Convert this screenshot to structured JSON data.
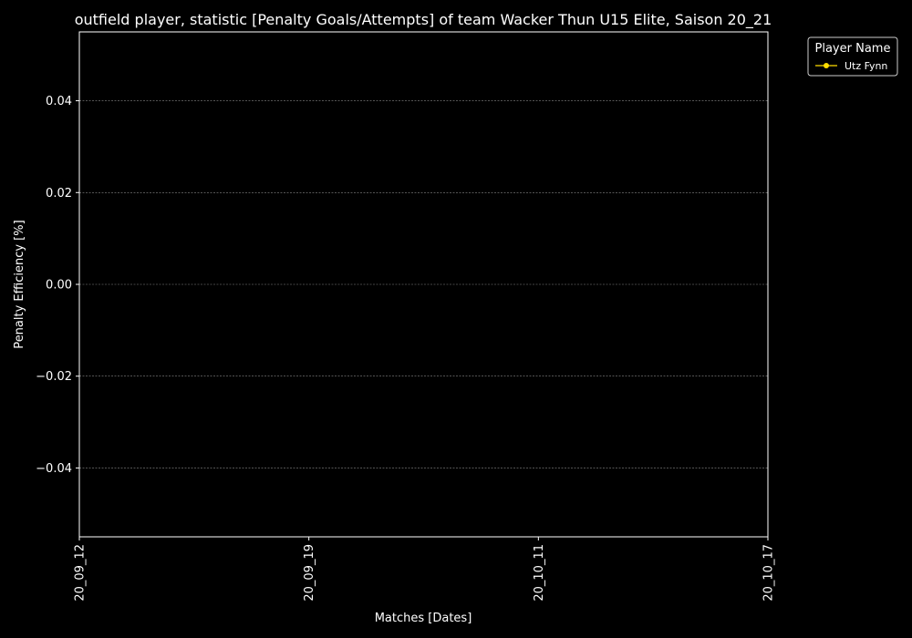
{
  "chart_data": {
    "type": "line",
    "title": "outfield player, statistic [Penalty Goals/Attempts] of team Wacker Thun U15 Elite, Saison 20_21",
    "xlabel": "Matches [Dates]",
    "ylabel": "Penalty Efficiency [%]",
    "categories": [
      "20_09_12",
      "20_09_19",
      "20_10_11",
      "20_10_17"
    ],
    "ylim": [
      -0.055,
      0.055
    ],
    "yticks": [
      -0.04,
      -0.02,
      0.0,
      0.02,
      0.04
    ],
    "ytick_labels": [
      "−0.04",
      "−0.02",
      "0.00",
      "0.02",
      "0.04"
    ],
    "grid": true,
    "legend": {
      "title": "Player Name",
      "placement": "outside-top-right"
    },
    "series": [
      {
        "name": "Utz Fynn",
        "color": "#ffdd00",
        "marker": "circle",
        "values": [
          null,
          null,
          null,
          null
        ]
      }
    ]
  },
  "colors": {
    "background": "#000000",
    "axes": "#ffffff",
    "grid": "#888888"
  }
}
